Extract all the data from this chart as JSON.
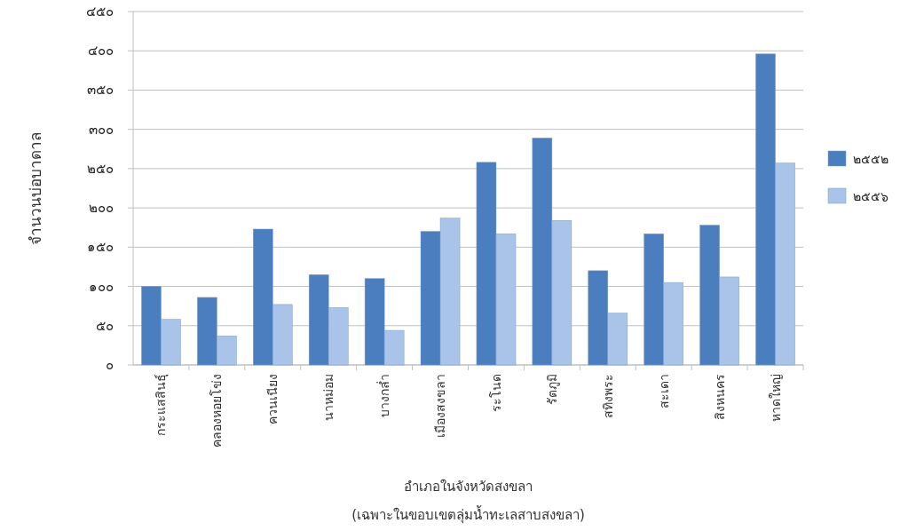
{
  "chart_data": {
    "type": "bar",
    "xlabel": "อำเภอในจังหวัดสงขลา",
    "ylabel": "จำนวนบ่อบาดาล",
    "annotations": [
      "(เฉพาะในขอบเขตลุ่มน้ำทะเลสาบสงขลา)"
    ],
    "categories": [
      "กระแสสินธุ์",
      "คลองหอยโข่ง",
      "ควนเนียง",
      "นาหม่อม",
      "บางกล่ำ",
      "เมืองสงขลา",
      "ระโนด",
      "รัตภูมิ",
      "สทิงพระ",
      "สะเดา",
      "สิงหนคร",
      "หาดใหญ่"
    ],
    "series": [
      {
        "name": "๒๕๕๒",
        "color": "#4a7ebf",
        "values": [
          100,
          86,
          173,
          115,
          110,
          170,
          258,
          289,
          120,
          167,
          178,
          396
        ]
      },
      {
        "name": "๒๕๕๖",
        "color": "#a9c4e8",
        "values": [
          58,
          37,
          77,
          73,
          44,
          187,
          167,
          184,
          66,
          105,
          112,
          257
        ]
      }
    ],
    "ylim": [
      0,
      450
    ],
    "yticks": [
      {
        "value": 0,
        "label": "๐"
      },
      {
        "value": 50,
        "label": "๕๐"
      },
      {
        "value": 100,
        "label": "๑๐๐"
      },
      {
        "value": 150,
        "label": "๑๕๐"
      },
      {
        "value": 200,
        "label": "๒๐๐"
      },
      {
        "value": 250,
        "label": "๒๕๐"
      },
      {
        "value": 300,
        "label": "๓๐๐"
      },
      {
        "value": 350,
        "label": "๓๕๐"
      },
      {
        "value": 400,
        "label": "๔๐๐"
      },
      {
        "value": 450,
        "label": "๔๕๐"
      }
    ],
    "grid": "y",
    "legend": "right"
  }
}
